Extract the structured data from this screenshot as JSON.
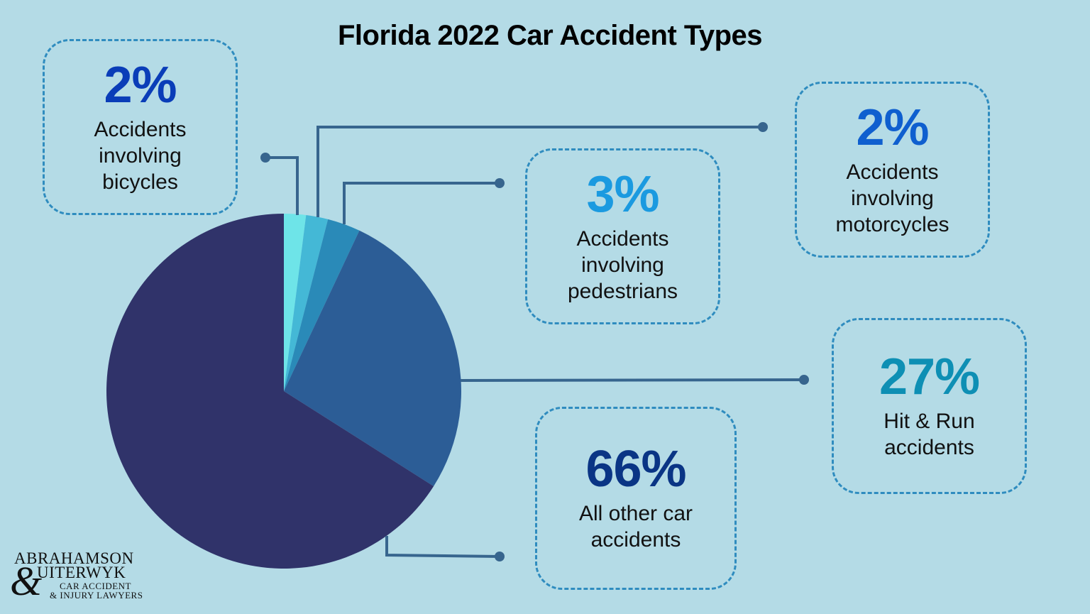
{
  "title": "Florida 2022 Car Accident Types",
  "colors": {
    "background": "#b4dbe6",
    "connector": "#37658e",
    "card_border": "#2f8cbf"
  },
  "cards": {
    "bicycles": {
      "pct": "2%",
      "lines": [
        "Accidents",
        "involving",
        "bicycles"
      ],
      "color": "#0a3db8"
    },
    "motorcycles": {
      "pct": "2%",
      "lines": [
        "Accidents",
        "involving",
        "motorcycles"
      ],
      "color": "#0f5fcf"
    },
    "pedestrians": {
      "pct": "3%",
      "lines": [
        "Accidents",
        "involving",
        "pedestrians"
      ],
      "color": "#1b9ae0"
    },
    "hitrun": {
      "pct": "27%",
      "lines": [
        "Hit & Run",
        "accidents"
      ],
      "color": "#0e8fb4"
    },
    "other": {
      "pct": "66%",
      "lines": [
        "All other car",
        "accidents"
      ],
      "color": "#0a3585"
    }
  },
  "logo": {
    "line1": "ABRAHAMSON",
    "ampersand": "&",
    "line2": "UITERWYK",
    "line3": "CAR ACCIDENT",
    "line4": "& INJURY LAWYERS"
  },
  "chart_data": {
    "type": "pie",
    "title": "Florida 2022 Car Accident Types",
    "categories": [
      "Accidents involving bicycles",
      "Accidents involving motorcycles",
      "Accidents involving pedestrians",
      "Hit & Run accidents",
      "All other car accidents"
    ],
    "values": [
      2,
      2,
      3,
      27,
      66
    ],
    "slice_colors": [
      "#6ee4e8",
      "#44b8d6",
      "#2a8ab8",
      "#2c5d96",
      "#30336a"
    ],
    "start_angle": "12 o'clock, clockwise",
    "unit": "%",
    "legend": "callout boxes"
  }
}
